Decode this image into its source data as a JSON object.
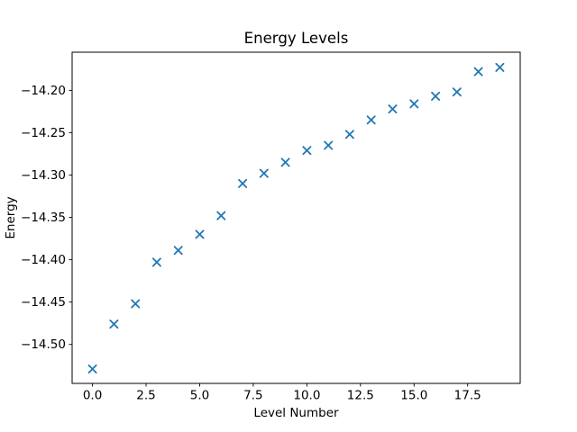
{
  "chart_data": {
    "type": "scatter",
    "title": "Energy Levels",
    "xlabel": "Level Number",
    "ylabel": "Energy",
    "marker": "x",
    "marker_color": "#1f77b4",
    "axis_color": "#000000",
    "background_color": "#ffffff",
    "grid": false,
    "legend": false,
    "x": [
      0,
      1,
      2,
      3,
      4,
      5,
      6,
      7,
      8,
      9,
      10,
      11,
      12,
      13,
      14,
      15,
      16,
      17,
      18,
      19
    ],
    "y": [
      -14.529,
      -14.476,
      -14.452,
      -14.403,
      -14.389,
      -14.37,
      -14.348,
      -14.31,
      -14.298,
      -14.285,
      -14.271,
      -14.265,
      -14.252,
      -14.235,
      -14.222,
      -14.216,
      -14.207,
      -14.202,
      -14.178,
      -14.173
    ],
    "xlim": [
      -0.95,
      19.95
    ],
    "ylim": [
      -14.546,
      -14.155
    ],
    "x_ticks": [
      0.0,
      2.5,
      5.0,
      7.5,
      10.0,
      12.5,
      15.0,
      17.5
    ],
    "x_tick_labels": [
      "0.0",
      "2.5",
      "5.0",
      "7.5",
      "10.0",
      "12.5",
      "15.0",
      "17.5"
    ],
    "y_ticks": [
      -14.5,
      -14.45,
      -14.4,
      -14.35,
      -14.3,
      -14.25,
      -14.2
    ],
    "y_tick_labels": [
      "−14.50",
      "−14.45",
      "−14.40",
      "−14.35",
      "−14.30",
      "−14.25",
      "−14.20"
    ]
  }
}
